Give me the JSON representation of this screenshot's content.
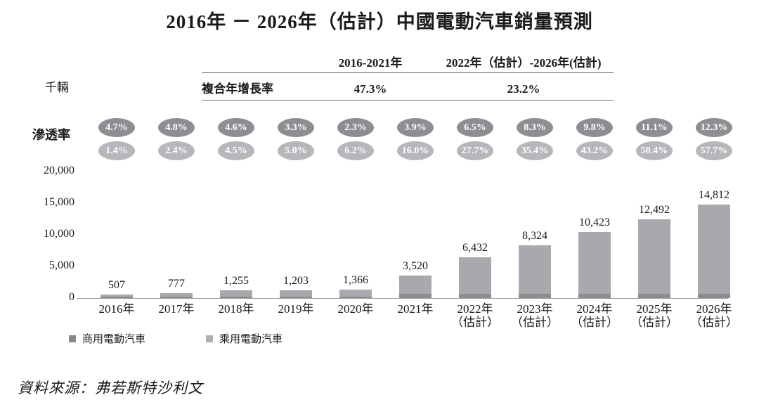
{
  "title": "2016年 － 2026年（估計）中國電動汽車銷量預測",
  "unit_label": "千輛",
  "penetration_label": "滲透率",
  "cagr_table": {
    "row_label": "複合年增長率",
    "columns": [
      {
        "label": "2016-2021年",
        "value": "47.3%"
      },
      {
        "label": "2022年（估計）-2026年(估計)",
        "value": "23.2%"
      }
    ]
  },
  "legend": [
    {
      "label": "商用電動汽車"
    },
    {
      "label": "乘用電動汽車"
    }
  ],
  "source": "資料來源：弗若斯特沙利文",
  "colors": {
    "oval_dark": "#8d8d92",
    "oval_light": "#b6b6bb",
    "bar_passenger": "#a8a8ad",
    "bar_commercial": "#8c8c91",
    "legend_commercial": "#85858a",
    "legend_passenger": "#aeaeb3",
    "axis_line": "#9a9a9e",
    "table_line": "#6f6f6f"
  },
  "chart_data": {
    "type": "bar",
    "stacked": true,
    "title": "2016年 － 2026年（估計）中國電動汽車銷量預測",
    "unit": "千輛",
    "ylim": [
      0,
      20000
    ],
    "yticks": [
      {
        "value": 0,
        "label": "0"
      },
      {
        "value": 5000,
        "label": "5,000"
      },
      {
        "value": 10000,
        "label": "10,000"
      },
      {
        "value": 15000,
        "label": "15,000"
      },
      {
        "value": 20000,
        "label": "20,000"
      }
    ],
    "categories": [
      {
        "year": "2016年",
        "note": ""
      },
      {
        "year": "2017年",
        "note": ""
      },
      {
        "year": "2018年",
        "note": ""
      },
      {
        "year": "2019年",
        "note": ""
      },
      {
        "year": "2020年",
        "note": ""
      },
      {
        "year": "2021年",
        "note": ""
      },
      {
        "year": "2022年",
        "note": "（估計）"
      },
      {
        "year": "2023年",
        "note": "（估計）"
      },
      {
        "year": "2024年",
        "note": "（估計）"
      },
      {
        "year": "2025年",
        "note": "（估計）"
      },
      {
        "year": "2026年",
        "note": "（估計）"
      }
    ],
    "totals": [
      507,
      777,
      1255,
      1203,
      1366,
      3520,
      6432,
      8324,
      10423,
      12492,
      14812
    ],
    "total_labels": [
      "507",
      "777",
      "1,255",
      "1,203",
      "1,366",
      "3,520",
      "6,432",
      "8,324",
      "10,423",
      "12,492",
      "14,812"
    ],
    "series_legend": [
      "商用電動汽車",
      "乘用電動汽車"
    ],
    "penetration_commercial": [
      "4.7%",
      "4.8%",
      "4.6%",
      "3.3%",
      "2.3%",
      "3.9%",
      "6.5%",
      "8.3%",
      "9.8%",
      "11.1%",
      "12.3%"
    ],
    "penetration_passenger": [
      "1.4%",
      "2.4%",
      "4.5%",
      "5.0%",
      "6.2%",
      "16.0%",
      "27.7%",
      "35.4%",
      "43.2%",
      "50.4%",
      "57.7%"
    ],
    "cagr": [
      {
        "period": "2016-2021年",
        "value": "47.3%"
      },
      {
        "period": "2022年（估計）-2026年(估計)",
        "value": "23.2%"
      }
    ],
    "legend_position": "bottom-left",
    "grid": false
  }
}
